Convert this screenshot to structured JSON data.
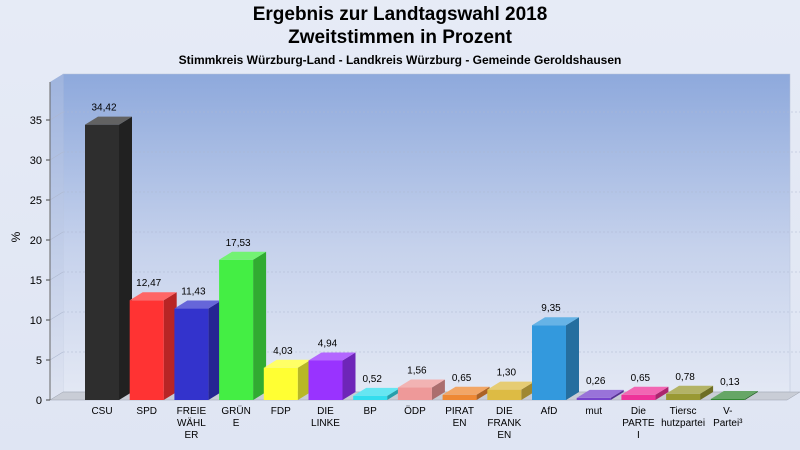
{
  "chart_data": {
    "type": "bar",
    "title": "Ergebnis zur Landtagswahl 2018",
    "subtitle": "Zweitstimmen in Prozent",
    "subsubtitle": "Stimmkreis Würzburg-Land - Landkreis Würzburg - Gemeinde Geroldshausen",
    "ylabel": "%",
    "ylim": [
      0,
      38
    ],
    "yticks": [
      0,
      5,
      10,
      15,
      20,
      25,
      30,
      35
    ],
    "grid": true,
    "categories": [
      [
        "CSU"
      ],
      [
        "SPD"
      ],
      [
        "FREIE",
        "WÄHL",
        "ER"
      ],
      [
        "GRÜN",
        "E"
      ],
      [
        "FDP"
      ],
      [
        "DIE",
        "LINKE"
      ],
      [
        "BP"
      ],
      [
        "ÖDP"
      ],
      [
        "PIRAT",
        "EN"
      ],
      [
        "DIE",
        "FRANK",
        "EN"
      ],
      [
        "AfD"
      ],
      [
        "mut"
      ],
      [
        "Die",
        "PARTE",
        "I"
      ],
      [
        "Tiersc",
        "hutzpartei"
      ],
      [
        "V-",
        "Partei³"
      ]
    ],
    "values": [
      34.42,
      12.47,
      11.43,
      17.53,
      4.03,
      4.94,
      0.52,
      1.56,
      0.65,
      1.3,
      9.35,
      0.26,
      0.65,
      0.78,
      0.13
    ],
    "value_labels": [
      "34,42",
      "12,47",
      "11,43",
      "17,53",
      "4,03",
      "4,94",
      "0,52",
      "1,56",
      "0,65",
      "1,30",
      "9,35",
      "0,26",
      "0,65",
      "0,78",
      "0,13"
    ],
    "colors": [
      "#2e2e2e",
      "#ff3333",
      "#3333cc",
      "#44ee44",
      "#ffff33",
      "#9933ff",
      "#33ddee",
      "#ee9999",
      "#ee8833",
      "#ddbb44",
      "#3399dd",
      "#7744cc",
      "#ee3399",
      "#999933",
      "#338833"
    ]
  }
}
